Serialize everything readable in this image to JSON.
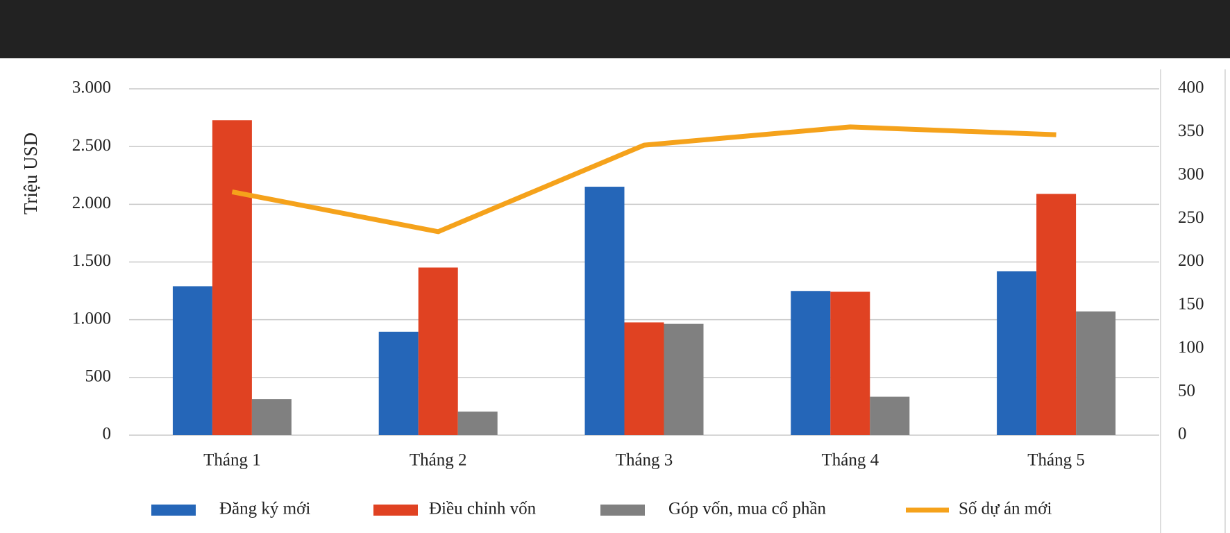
{
  "chart_data": {
    "type": "bar",
    "y_label": "Triệu USD",
    "categories": [
      "Tháng 1",
      "Tháng 2",
      "Tháng 3",
      "Tháng 4",
      "Tháng 5"
    ],
    "series": [
      {
        "name": "Đăng ký mới",
        "color": "#2566b8",
        "values": [
          1290,
          896,
          2152,
          1249,
          1419
        ]
      },
      {
        "name": "Điều chỉnh vốn",
        "color": "#e04222",
        "values": [
          2728,
          1452,
          977,
          1242,
          2090
        ]
      },
      {
        "name": "Góp vốn, mua cổ phần",
        "color": "#808080",
        "values": [
          312,
          204,
          964,
          333,
          1072
        ]
      },
      {
        "name": "Số dự án mới",
        "color": "#f5a21b",
        "type": "line",
        "axis": "y2",
        "values": [
          281,
          235,
          335,
          356,
          347
        ]
      }
    ],
    "ylim": [
      0,
      3000
    ],
    "yticks": [
      0,
      {
        "value": 500,
        "label": "500"
      },
      {
        "value": 1000,
        "label": "1.000"
      },
      {
        "value": 1500,
        "label": "1.500"
      },
      {
        "value": 2000,
        "label": "2.000"
      },
      {
        "value": 2500,
        "label": "2.500"
      },
      {
        "value": 3000,
        "label": "3.000"
      }
    ],
    "y2lim": [
      0,
      400
    ],
    "y2ticks": [
      0,
      50,
      100,
      150,
      200,
      250,
      300,
      350,
      400
    ],
    "grid": true,
    "legend": "bottom"
  }
}
